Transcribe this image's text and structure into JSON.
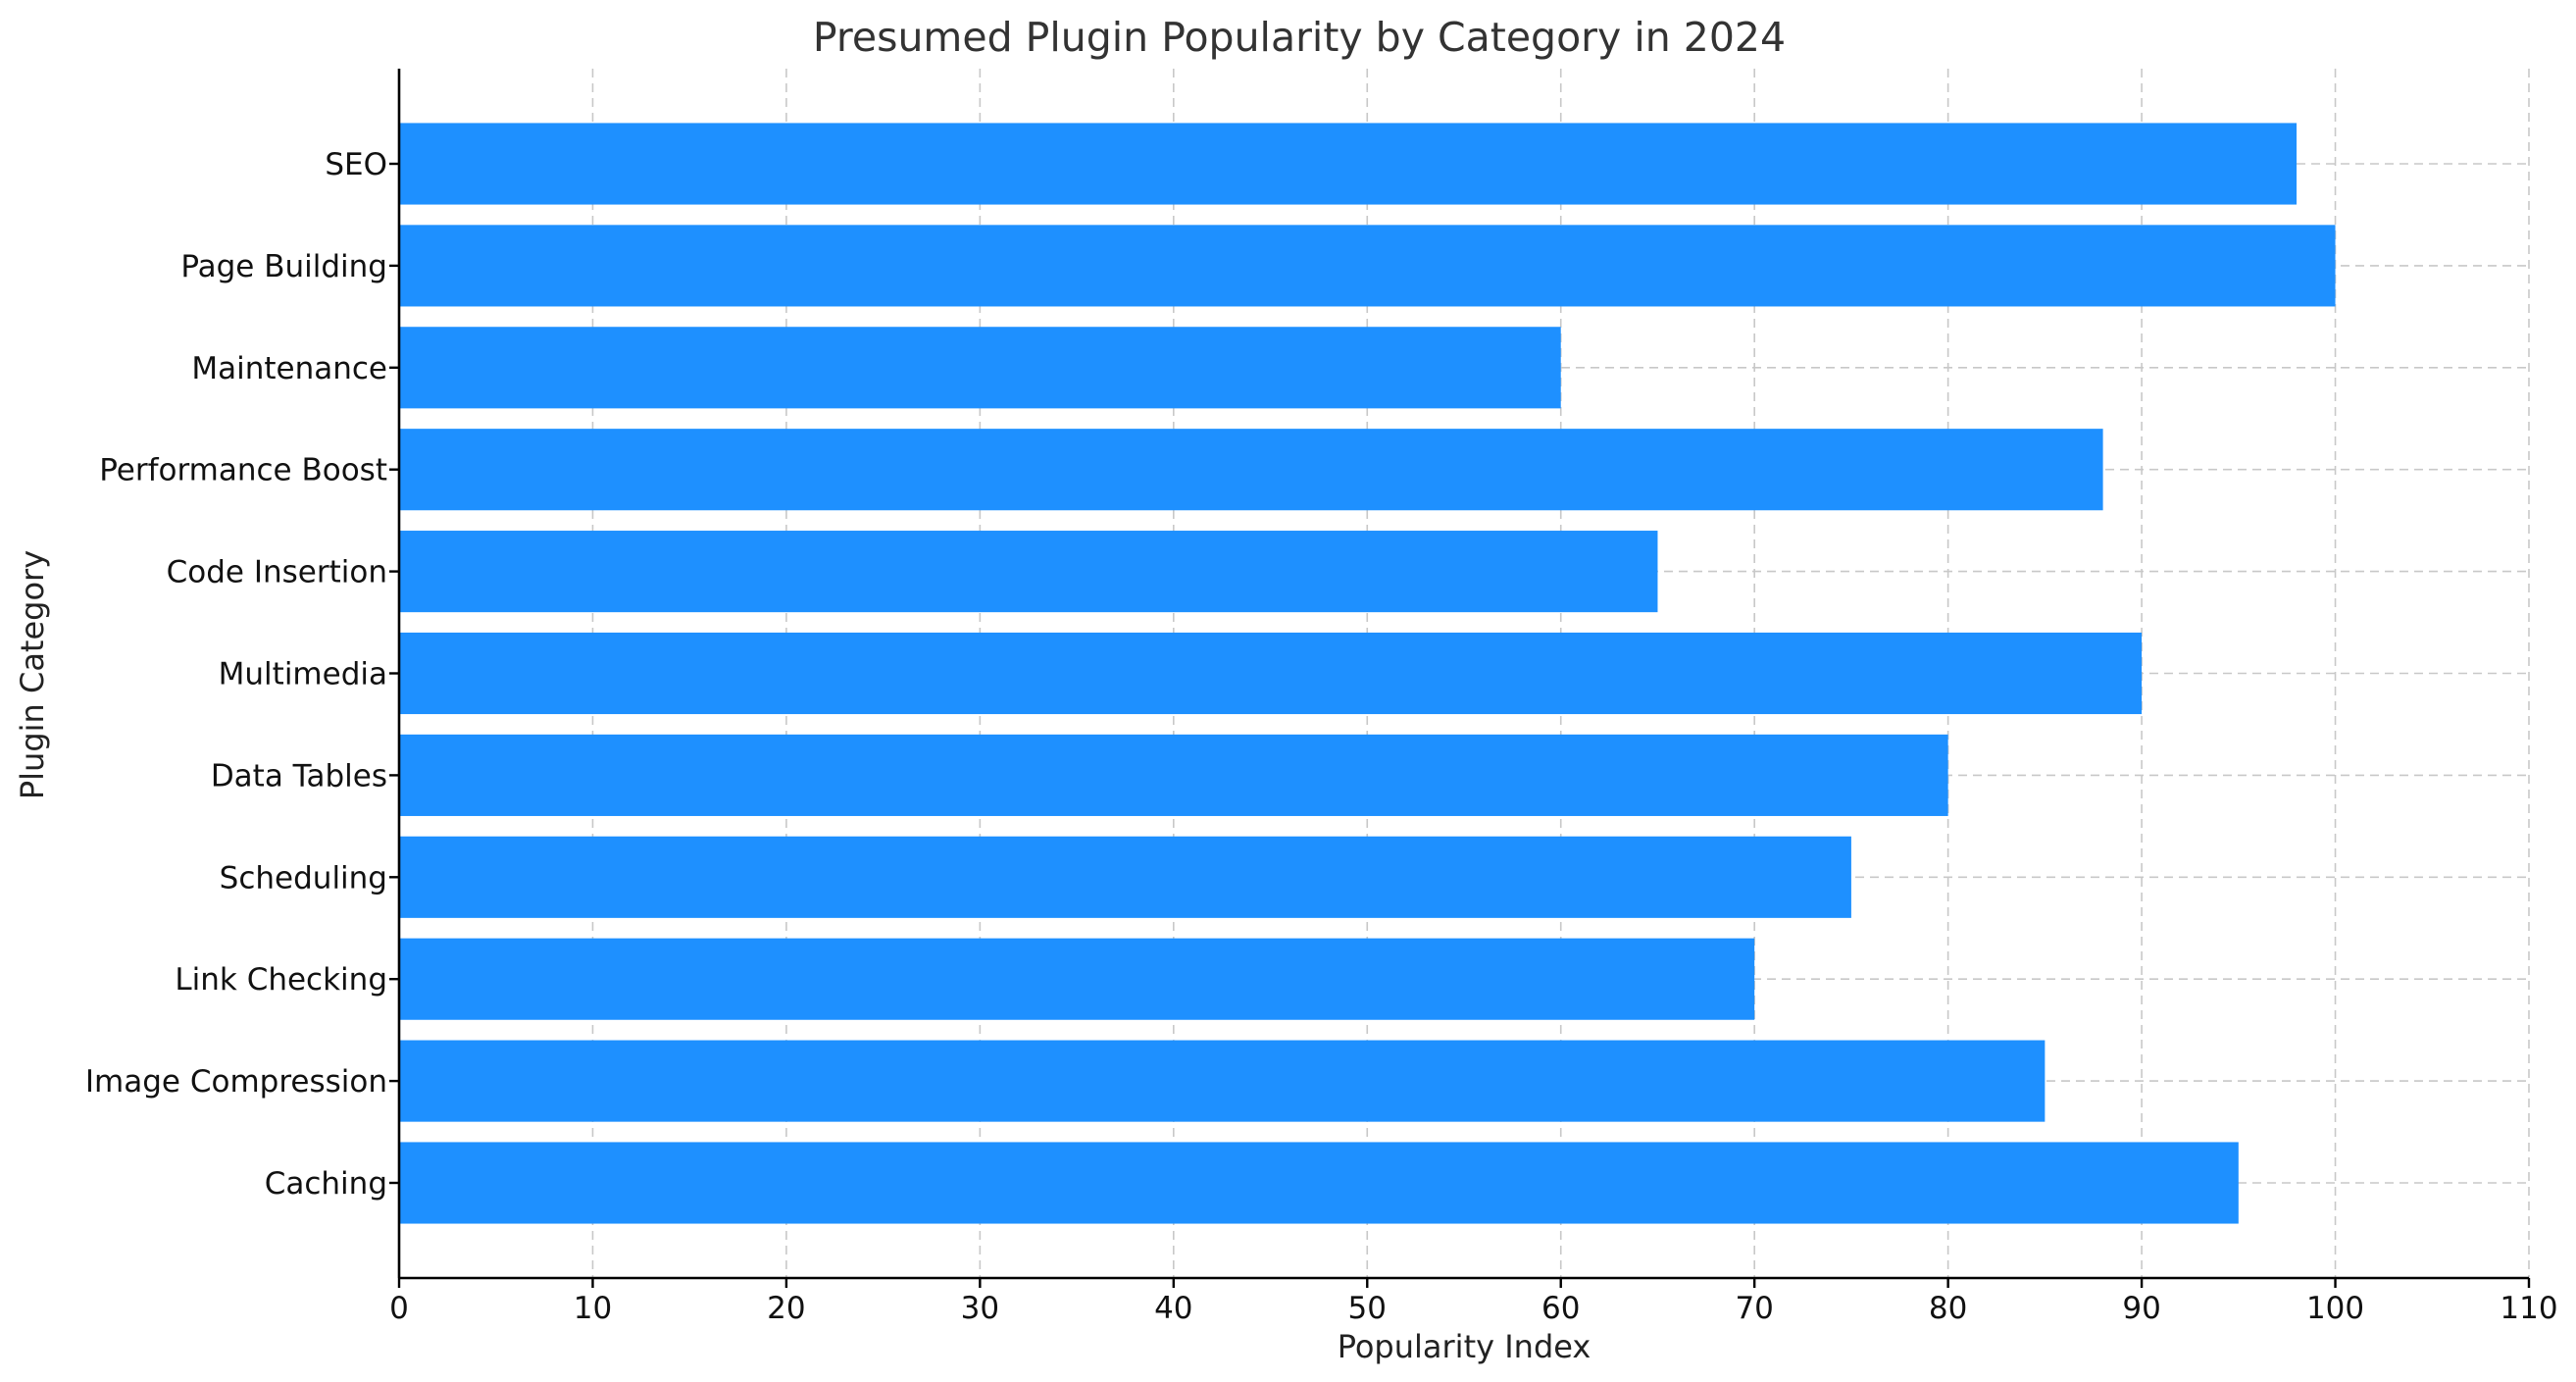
{
  "chart_data": {
    "type": "bar",
    "orientation": "horizontal",
    "title": "Presumed Plugin Popularity by Category in 2024",
    "xlabel": "Popularity Index",
    "ylabel": "Plugin Category",
    "categories": [
      "Caching",
      "Image Compression",
      "Link Checking",
      "Scheduling",
      "Data Tables",
      "Multimedia",
      "Code Insertion",
      "Performance Boost",
      "Maintenance",
      "Page Building",
      "SEO"
    ],
    "values": [
      95,
      85,
      70,
      75,
      80,
      90,
      65,
      88,
      60,
      100,
      98
    ],
    "xlim": [
      0,
      110
    ],
    "xticks": [
      0,
      10,
      20,
      30,
      40,
      50,
      60,
      70,
      80,
      90,
      100,
      110
    ],
    "grid": true,
    "bar_color": "#1e90ff"
  }
}
